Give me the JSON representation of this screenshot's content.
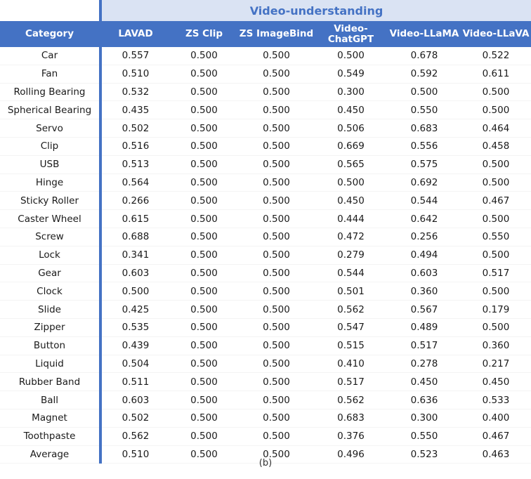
{
  "table": {
    "group_header": "Video-understanding",
    "columns": [
      "Category",
      "LAVAD",
      "ZS Clip",
      "ZS ImageBind",
      "Video-ChatGPT",
      "Video-LLaMA",
      "Video-LLaVA"
    ],
    "column_lines": [
      [
        "Category"
      ],
      [
        "LAVAD"
      ],
      [
        "ZS Clip"
      ],
      [
        "ZS ImageBind"
      ],
      [
        "Video-",
        "ChatGPT"
      ],
      [
        "Video-LLaMA"
      ],
      [
        "Video-LLaVA"
      ]
    ],
    "rows": [
      {
        "category": "Car",
        "values": [
          "0.557",
          "0.500",
          "0.500",
          "0.500",
          "0.678",
          "0.522"
        ]
      },
      {
        "category": "Fan",
        "values": [
          "0.510",
          "0.500",
          "0.500",
          "0.549",
          "0.592",
          "0.611"
        ]
      },
      {
        "category": "Rolling Bearing",
        "values": [
          "0.532",
          "0.500",
          "0.500",
          "0.300",
          "0.500",
          "0.500"
        ]
      },
      {
        "category": "Spherical Bearing",
        "values": [
          "0.435",
          "0.500",
          "0.500",
          "0.450",
          "0.550",
          "0.500"
        ]
      },
      {
        "category": "Servo",
        "values": [
          "0.502",
          "0.500",
          "0.500",
          "0.506",
          "0.683",
          "0.464"
        ]
      },
      {
        "category": "Clip",
        "values": [
          "0.516",
          "0.500",
          "0.500",
          "0.669",
          "0.556",
          "0.458"
        ]
      },
      {
        "category": "USB",
        "values": [
          "0.513",
          "0.500",
          "0.500",
          "0.565",
          "0.575",
          "0.500"
        ]
      },
      {
        "category": "Hinge",
        "values": [
          "0.564",
          "0.500",
          "0.500",
          "0.500",
          "0.692",
          "0.500"
        ]
      },
      {
        "category": "Sticky Roller",
        "values": [
          "0.266",
          "0.500",
          "0.500",
          "0.450",
          "0.544",
          "0.467"
        ]
      },
      {
        "category": "Caster Wheel",
        "values": [
          "0.615",
          "0.500",
          "0.500",
          "0.444",
          "0.642",
          "0.500"
        ]
      },
      {
        "category": "Screw",
        "values": [
          "0.688",
          "0.500",
          "0.500",
          "0.472",
          "0.256",
          "0.550"
        ]
      },
      {
        "category": "Lock",
        "values": [
          "0.341",
          "0.500",
          "0.500",
          "0.279",
          "0.494",
          "0.500"
        ]
      },
      {
        "category": "Gear",
        "values": [
          "0.603",
          "0.500",
          "0.500",
          "0.544",
          "0.603",
          "0.517"
        ]
      },
      {
        "category": "Clock",
        "values": [
          "0.500",
          "0.500",
          "0.500",
          "0.501",
          "0.360",
          "0.500"
        ]
      },
      {
        "category": "Slide",
        "values": [
          "0.425",
          "0.500",
          "0.500",
          "0.562",
          "0.567",
          "0.179"
        ]
      },
      {
        "category": "Zipper",
        "values": [
          "0.535",
          "0.500",
          "0.500",
          "0.547",
          "0.489",
          "0.500"
        ]
      },
      {
        "category": "Button",
        "values": [
          "0.439",
          "0.500",
          "0.500",
          "0.515",
          "0.517",
          "0.360"
        ]
      },
      {
        "category": "Liquid",
        "values": [
          "0.504",
          "0.500",
          "0.500",
          "0.410",
          "0.278",
          "0.217"
        ]
      },
      {
        "category": "Rubber Band",
        "values": [
          "0.511",
          "0.500",
          "0.500",
          "0.517",
          "0.450",
          "0.450"
        ]
      },
      {
        "category": "Ball",
        "values": [
          "0.603",
          "0.500",
          "0.500",
          "0.562",
          "0.636",
          "0.533"
        ]
      },
      {
        "category": "Magnet",
        "values": [
          "0.502",
          "0.500",
          "0.500",
          "0.683",
          "0.300",
          "0.400"
        ]
      },
      {
        "category": "Toothpaste",
        "values": [
          "0.562",
          "0.500",
          "0.500",
          "0.376",
          "0.550",
          "0.467"
        ]
      },
      {
        "category": "Average",
        "values": [
          "0.510",
          "0.500",
          "0.500",
          "0.496",
          "0.523",
          "0.463"
        ]
      }
    ]
  },
  "caption": "(b)",
  "colors": {
    "header_bg": "#4472c4",
    "group_header_bg": "#dae3f3",
    "group_header_text": "#4472c4",
    "separator": "#4472c4",
    "zebra": "#f2f2f2"
  }
}
